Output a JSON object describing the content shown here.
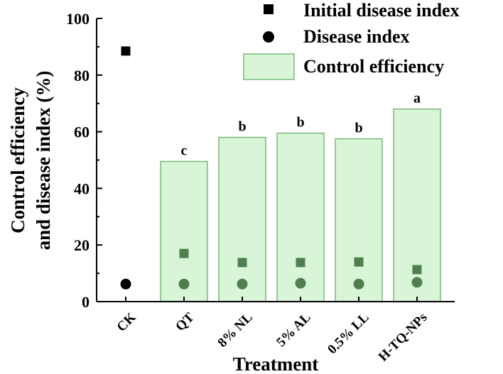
{
  "chart_data": {
    "type": "bar",
    "title": "",
    "xlabel": "Treatment",
    "ylabel_line1": "Control efficiency",
    "ylabel_line2": "and disease index (%)",
    "ylim": [
      0,
      100
    ],
    "yticks": [
      "0",
      "20",
      "40",
      "60",
      "80",
      "100"
    ],
    "categories": [
      "CK",
      "QT",
      "8% NL",
      "5% AL",
      "0.5% LL",
      "H-TQ-NPs"
    ],
    "series": [
      {
        "name": "Control efficiency",
        "kind": "bar",
        "values": [
          null,
          49.5,
          58.0,
          59.5,
          57.5,
          68.0
        ],
        "labels": [
          "",
          "c",
          "b",
          "b",
          "b",
          "a"
        ]
      },
      {
        "name": "Initial disease index",
        "kind": "square",
        "values": [
          88.5,
          17.0,
          13.8,
          13.8,
          14.0,
          11.3
        ]
      },
      {
        "name": "Disease index",
        "kind": "circle",
        "values": [
          6.2,
          6.2,
          6.2,
          6.5,
          6.2,
          6.8
        ]
      }
    ],
    "legend": {
      "position": "top-right",
      "entries": [
        "Initial disease index",
        "Disease index",
        "Control efficiency"
      ]
    },
    "colors": {
      "bar_fill": "#d8f5d8",
      "bar_stroke": "#7ab87a",
      "marker_inside": "#4f7f4f",
      "marker_outside": "#000000"
    }
  }
}
